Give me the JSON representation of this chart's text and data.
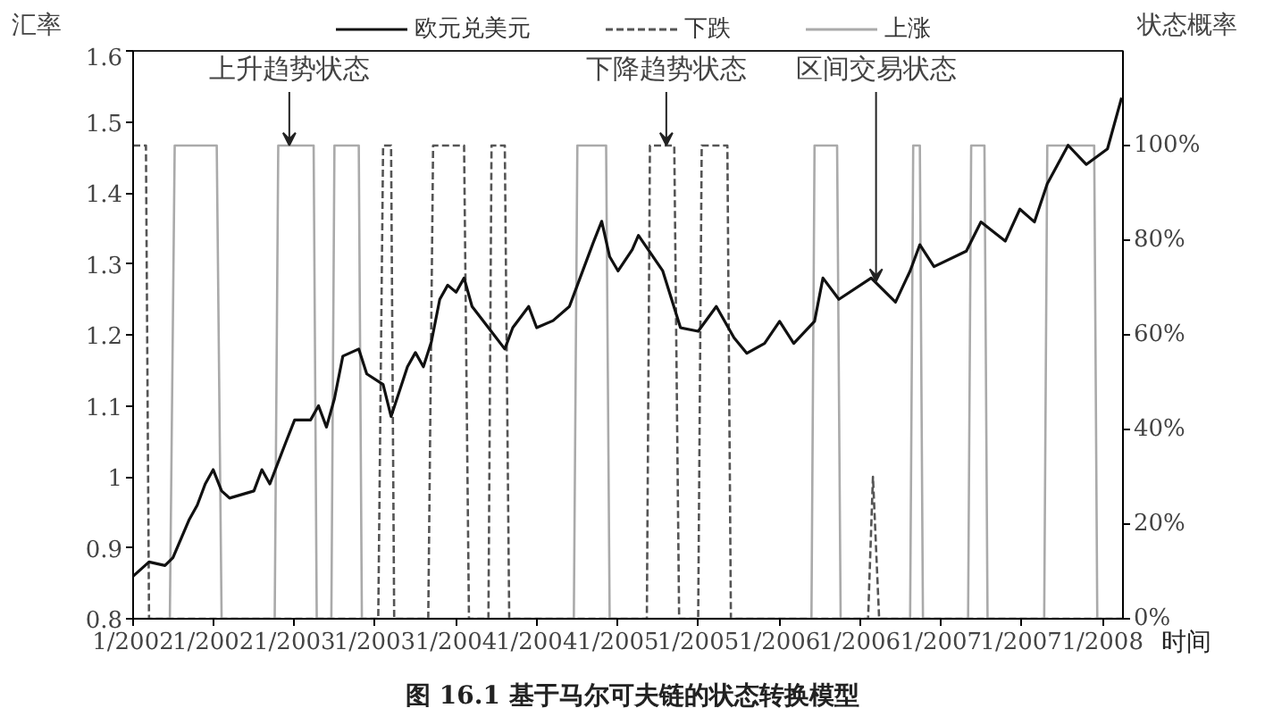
{
  "chart_data": {
    "type": "line",
    "ylabel": "汇率",
    "y2label": "状态概率",
    "xlabel": "时间",
    "xlim": [
      "2002-01-01",
      "2008-02-16"
    ],
    "xticks": [
      {
        "value": "2002-01-01",
        "label": "1/2002"
      },
      {
        "value": "2002-07-01",
        "label": "1/2002"
      },
      {
        "value": "2003-01-01",
        "label": "1/2003"
      },
      {
        "value": "2003-07-01",
        "label": "1/2003"
      },
      {
        "value": "2004-01-01",
        "label": "1/2004"
      },
      {
        "value": "2004-07-01",
        "label": "1/2004"
      },
      {
        "value": "2005-01-01",
        "label": "1/2005"
      },
      {
        "value": "2005-07-01",
        "label": "1/2005"
      },
      {
        "value": "2006-01-01",
        "label": "1/2006"
      },
      {
        "value": "2006-07-01",
        "label": "1/2006"
      },
      {
        "value": "2007-01-01",
        "label": "1/2007"
      },
      {
        "value": "2007-07-01",
        "label": "1/2007"
      },
      {
        "value": "2008-01-01",
        "label": "1/2008"
      }
    ],
    "ylim": [
      0.8,
      1.6
    ],
    "yticks": [
      0.8,
      0.9,
      1,
      1.1,
      1.2,
      1.3,
      1.4,
      1.5,
      1.6
    ],
    "y2lim": [
      0,
      120
    ],
    "y2ticks": [
      {
        "value": 0,
        "label": "0%"
      },
      {
        "value": 20,
        "label": "20%"
      },
      {
        "value": 40,
        "label": "40%"
      },
      {
        "value": 60,
        "label": "60%"
      },
      {
        "value": 80,
        "label": "80%"
      },
      {
        "value": 100,
        "label": "100%"
      }
    ],
    "legend": "top",
    "grid": false,
    "series": [
      {
        "name": "欧元兑美元",
        "color": "#111111",
        "line_style": "solid",
        "x": [
          "2002-01-01",
          "2002-02-06",
          "2002-03-14",
          "2002-04-01",
          "2002-05-08",
          "2002-05-26",
          "2002-06-13",
          "2002-07-01",
          "2002-07-20",
          "2002-08-07",
          "2002-10-01",
          "2002-10-19",
          "2002-11-06",
          "2002-12-13",
          "2003-01-01",
          "2003-02-06",
          "2003-02-24",
          "2003-03-14",
          "2003-04-01",
          "2003-04-20",
          "2003-05-26",
          "2003-06-13",
          "2003-07-20",
          "2003-08-07",
          "2003-09-13",
          "2003-10-01",
          "2003-10-19",
          "2003-11-06",
          "2003-11-25",
          "2003-12-13",
          "2004-01-01",
          "2004-01-19",
          "2004-02-06",
          "2004-03-14",
          "2004-04-20",
          "2004-05-08",
          "2004-06-13",
          "2004-07-01",
          "2004-08-07",
          "2004-09-13",
          "2004-10-01",
          "2004-11-06",
          "2004-11-25",
          "2004-12-13",
          "2005-01-01",
          "2005-02-02",
          "2005-02-16",
          "2005-04-12",
          "2005-05-22",
          "2005-07-01",
          "2005-08-11",
          "2005-09-20",
          "2005-10-19",
          "2005-11-28",
          "2006-01-01",
          "2006-02-02",
          "2006-03-21",
          "2006-04-09",
          "2006-05-15",
          "2006-07-27",
          "2006-09-20",
          "2006-10-23",
          "2006-11-14",
          "2006-12-16",
          "2007-02-27",
          "2007-04-01",
          "2007-05-26",
          "2007-06-28",
          "2007-07-31",
          "2007-08-29",
          "2007-10-15",
          "2007-11-25",
          "2008-01-12",
          "2008-02-13"
        ],
        "values": [
          0.86,
          0.88,
          0.875,
          0.886,
          0.94,
          0.96,
          0.99,
          1.01,
          0.98,
          0.97,
          0.98,
          1.01,
          0.99,
          1.05,
          1.08,
          1.08,
          1.1,
          1.07,
          1.11,
          1.17,
          1.18,
          1.145,
          1.13,
          1.085,
          1.155,
          1.175,
          1.155,
          1.19,
          1.25,
          1.27,
          1.26,
          1.28,
          1.24,
          1.21,
          1.18,
          1.21,
          1.24,
          1.21,
          1.22,
          1.24,
          1.27,
          1.33,
          1.36,
          1.31,
          1.29,
          1.32,
          1.34,
          1.29,
          1.21,
          1.205,
          1.24,
          1.196,
          1.174,
          1.188,
          1.219,
          1.188,
          1.219,
          1.28,
          1.25,
          1.28,
          1.246,
          1.29,
          1.327,
          1.296,
          1.318,
          1.359,
          1.332,
          1.377,
          1.359,
          1.413,
          1.467,
          1.44,
          1.462,
          1.534
        ]
      },
      {
        "name": "下跌",
        "color": "#555555",
        "line_style": "dashed",
        "axis": "y2",
        "x": [
          "2002-01-01",
          "2002-01-30",
          "2002-02-06",
          "2003-07-09",
          "2003-07-20",
          "2003-08-07",
          "2003-08-14",
          "2003-10-30",
          "2003-11-10",
          "2004-01-19",
          "2004-01-30",
          "2004-03-14",
          "2004-03-21",
          "2004-04-20",
          "2004-04-30",
          "2005-03-07",
          "2005-03-14",
          "2005-05-08",
          "2005-05-19",
          "2005-07-01",
          "2005-07-09",
          "2005-09-05",
          "2005-09-13",
          "2006-07-20",
          "2006-07-31",
          "2006-08-14",
          "2008-02-16"
        ],
        "values": [
          100,
          100,
          0,
          0,
          100,
          100,
          0,
          0,
          100,
          100,
          0,
          0,
          100,
          100,
          0,
          0,
          100,
          100,
          0,
          0,
          100,
          100,
          0,
          0,
          30,
          0,
          0
        ]
      },
      {
        "name": "上涨",
        "color": "#aaaaaa",
        "line_style": "solid",
        "axis": "y2",
        "x": [
          "2002-01-01",
          "2002-03-25",
          "2002-04-05",
          "2002-07-09",
          "2002-07-20",
          "2002-11-17",
          "2002-11-25",
          "2003-02-13",
          "2003-02-20",
          "2003-03-25",
          "2003-04-01",
          "2003-05-26",
          "2003-06-02",
          "2004-09-23",
          "2004-10-01",
          "2004-12-05",
          "2004-12-13",
          "2006-03-14",
          "2006-03-21",
          "2006-05-11",
          "2006-05-19",
          "2006-10-23",
          "2006-10-30",
          "2006-11-14",
          "2006-11-21",
          "2007-03-03",
          "2007-03-10",
          "2007-04-09",
          "2007-04-16",
          "2007-08-22",
          "2007-08-29",
          "2007-12-13",
          "2007-12-20",
          "2008-02-16"
        ],
        "values": [
          0,
          0,
          100,
          100,
          0,
          0,
          100,
          100,
          0,
          0,
          100,
          100,
          0,
          0,
          100,
          100,
          0,
          0,
          100,
          100,
          0,
          0,
          100,
          100,
          0,
          0,
          100,
          100,
          0,
          0,
          100,
          100,
          0,
          0
        ]
      }
    ],
    "annotations": [
      {
        "text": "上升趋势状态",
        "x": "2002-12-20",
        "y": 1.467
      },
      {
        "text": "下降趋势状态",
        "x": "2005-04-20",
        "y": 1.467
      },
      {
        "text": "区间交易状态",
        "x": "2006-08-07",
        "y": 1.275
      },
      "图 16.1 基于马尔可夫链的状态转换模型"
    ]
  }
}
